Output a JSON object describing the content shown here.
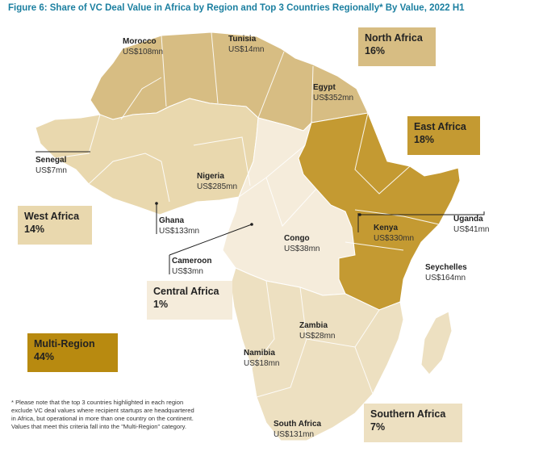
{
  "figure": {
    "title": "Figure 6: Share of VC Deal Value in Africa by Region and Top 3 Countries Regionally* By Value, 2022 H1",
    "footnote": "* Please note that the top 3 countries highlighted in each region exclude VC deal values where recipient startups are headquartered in Africa, but operational in more than one country on the continent. Values that meet this criteria fall into the \"Multi-Region\" category."
  },
  "colors": {
    "north_africa": "#d7bd83",
    "west_africa": "#e9d8ae",
    "east_africa": "#c49a32",
    "central_africa": "#f5ecdb",
    "southern_africa": "#ede0c1",
    "multi_region": "#b88a10",
    "borders": "#ffffff",
    "title": "#1b7fa0"
  },
  "regions": [
    {
      "id": "north-africa",
      "name": "North Africa",
      "share": "16%"
    },
    {
      "id": "west-africa",
      "name": "West Africa",
      "share": "14%"
    },
    {
      "id": "east-africa",
      "name": "East Africa",
      "share": "18%"
    },
    {
      "id": "central-africa",
      "name": "Central Africa",
      "share": "1%"
    },
    {
      "id": "southern-africa",
      "name": "Southern Africa",
      "share": "7%"
    },
    {
      "id": "multi-region",
      "name": "Multi-Region",
      "share": "44%"
    }
  ],
  "countries": [
    {
      "id": "morocco",
      "name": "Morocco",
      "value": "US$108mn"
    },
    {
      "id": "tunisia",
      "name": "Tunisia",
      "value": "US$14mn"
    },
    {
      "id": "egypt",
      "name": "Egypt",
      "value": "US$352mn"
    },
    {
      "id": "senegal",
      "name": "Senegal",
      "value": "US$7mn"
    },
    {
      "id": "nigeria",
      "name": "Nigeria",
      "value": "US$285mn"
    },
    {
      "id": "ghana",
      "name": "Ghana",
      "value": "US$133mn"
    },
    {
      "id": "cameroon",
      "name": "Cameroon",
      "value": "US$3mn"
    },
    {
      "id": "congo",
      "name": "Congo",
      "value": "US$38mn"
    },
    {
      "id": "kenya",
      "name": "Kenya",
      "value": "US$330mn"
    },
    {
      "id": "uganda",
      "name": "Uganda",
      "value": "US$41mn"
    },
    {
      "id": "seychelles",
      "name": "Seychelles",
      "value": "US$164mn"
    },
    {
      "id": "zambia",
      "name": "Zambia",
      "value": "US$28mn"
    },
    {
      "id": "namibia",
      "name": "Namibia",
      "value": "US$18mn"
    },
    {
      "id": "south-africa",
      "name": "South Africa",
      "value": "US$131mn"
    }
  ]
}
